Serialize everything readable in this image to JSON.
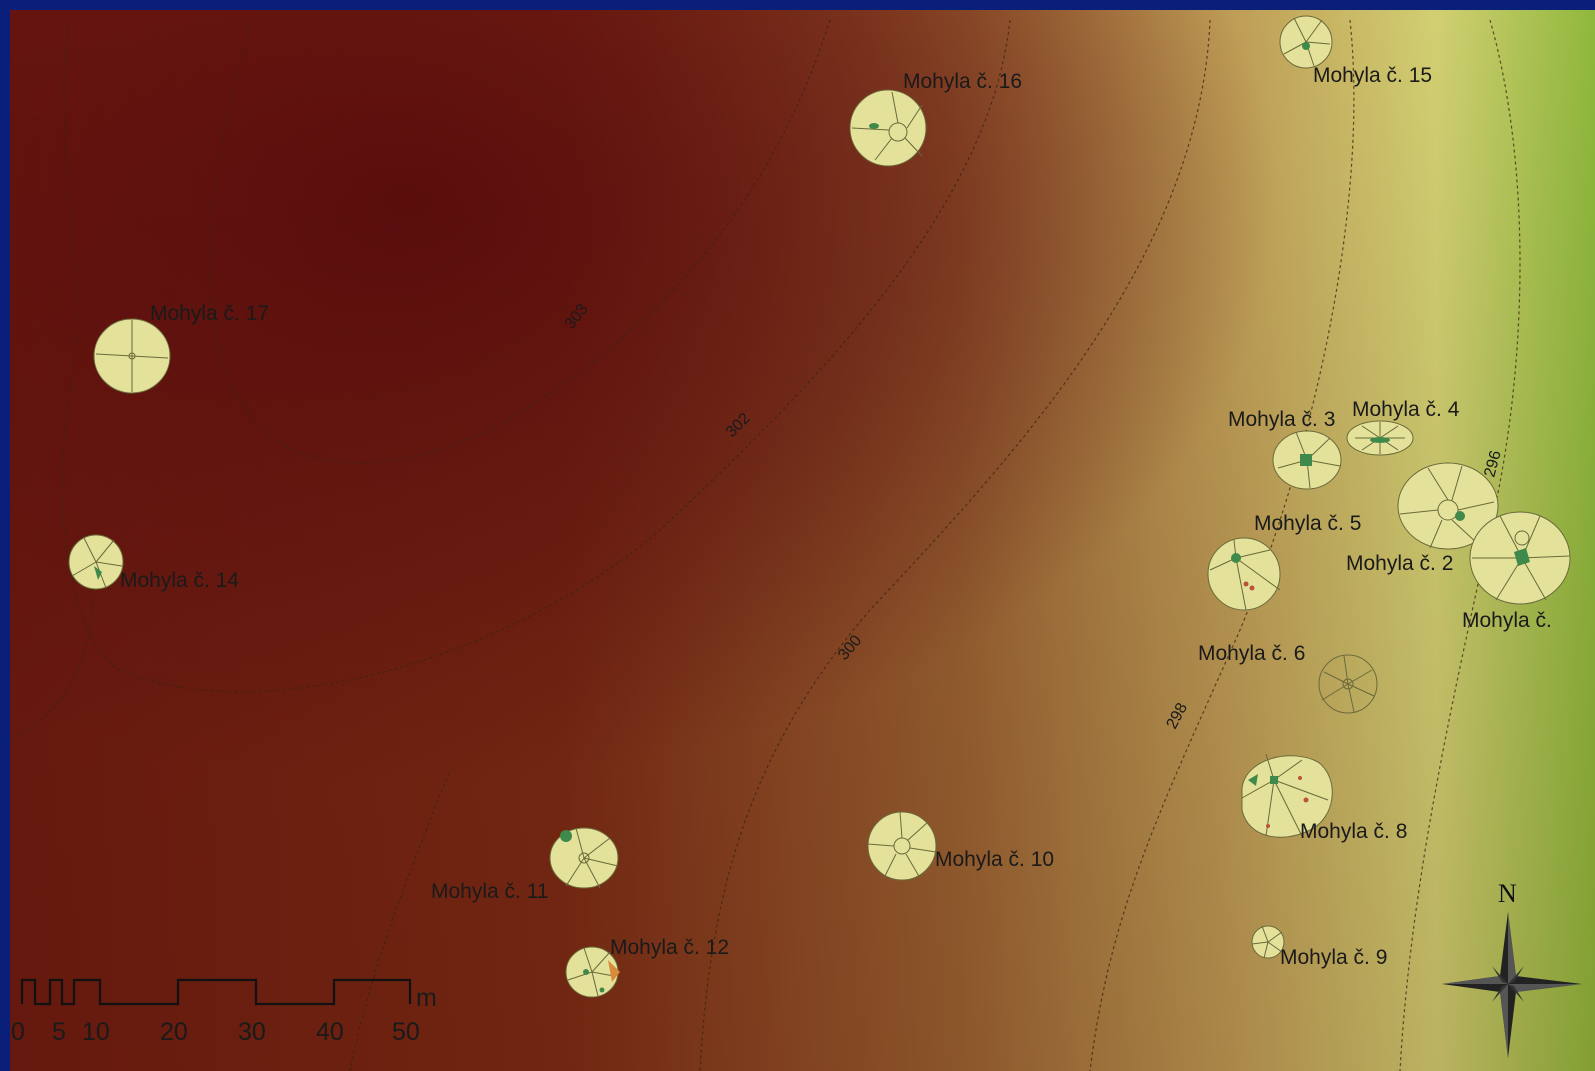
{
  "mounds": [
    {
      "id": "16",
      "label": "Mohyla č. 16"
    },
    {
      "id": "15",
      "label": "Mohyla č. 15"
    },
    {
      "id": "17",
      "label": "Mohyla č. 17"
    },
    {
      "id": "14",
      "label": "Mohyla č. 14"
    },
    {
      "id": "3",
      "label": "Mohyla č. 3"
    },
    {
      "id": "4",
      "label": "Mohyla č. 4"
    },
    {
      "id": "5",
      "label": "Mohyla č. 5"
    },
    {
      "id": "2",
      "label": "Mohyla č. 2"
    },
    {
      "id": "1",
      "label": "Mohyla č."
    },
    {
      "id": "6",
      "label": "Mohyla č. 6"
    },
    {
      "id": "8",
      "label": "Mohyla č. 8"
    },
    {
      "id": "9",
      "label": "Mohyla č. 9"
    },
    {
      "id": "10",
      "label": "Mohyla č. 10"
    },
    {
      "id": "11",
      "label": "Mohyla č. 11"
    },
    {
      "id": "12",
      "label": "Mohyla č. 12"
    }
  ],
  "contours": [
    {
      "label": "303"
    },
    {
      "label": "302"
    },
    {
      "label": "300"
    },
    {
      "label": "298"
    },
    {
      "label": "296"
    }
  ],
  "scale_bar": {
    "ticks": [
      "0",
      "5",
      "10",
      "20",
      "30",
      "40",
      "50"
    ],
    "unit": "m"
  },
  "north_arrow": {
    "label": "N"
  },
  "colors": {
    "frame": "#0a1f7a",
    "high_elevation": "#5e0e0e",
    "mid_elevation": "#a0703a",
    "low_elevation": "#8fb83c",
    "mound_fill": "#e3e19a",
    "feature": "#3f8a4a"
  }
}
